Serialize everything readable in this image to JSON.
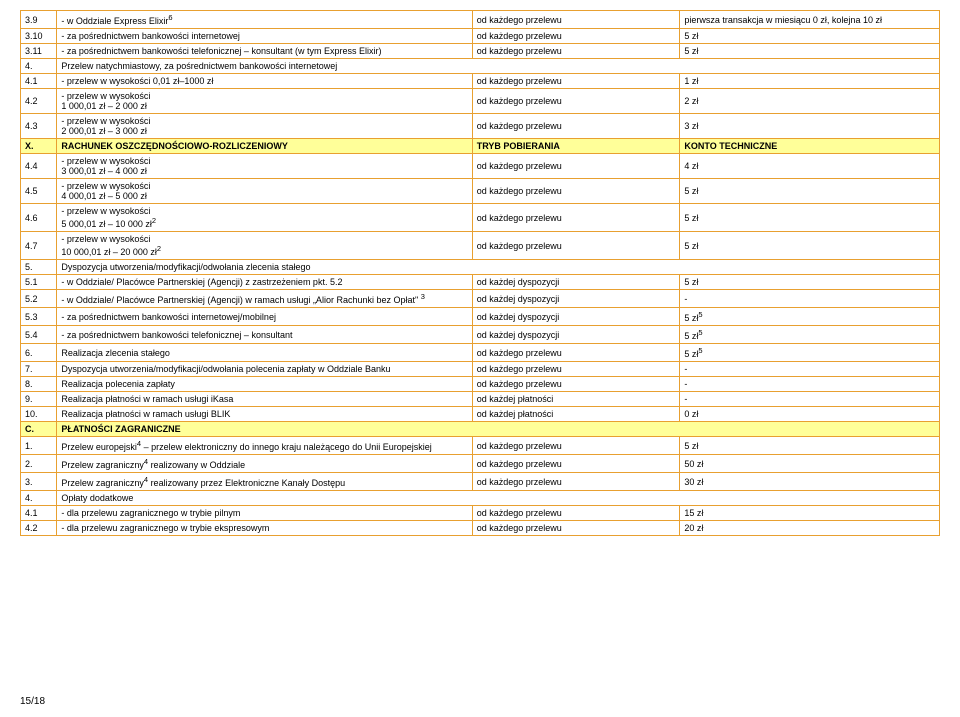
{
  "rows": [
    {
      "num": "3.9",
      "desc": "- w Oddziale Express Elixir<sup>6</sup>",
      "tryb": "od każdego przelewu",
      "val": "pierwsza transakcja w miesiącu 0 zł, kolejna 10 zł"
    },
    {
      "num": "3.10",
      "desc": "- za pośrednictwem bankowości internetowej",
      "tryb": "od każdego przelewu",
      "val": "5 zł"
    },
    {
      "num": "3.11",
      "desc": "- za pośrednictwem bankowości telefonicznej – konsultant (w tym Express Elixir)",
      "tryb": "od każdego przelewu",
      "val": "5 zł"
    },
    {
      "num": "4.",
      "desc": "Przelew natychmiastowy, za pośrednictwem bankowości internetowej",
      "span": true
    },
    {
      "num": "4.1",
      "desc": "- przelew w wysokości 0,01 zł–1000 zł",
      "tryb": "od każdego przelewu",
      "val": "1 zł"
    },
    {
      "num": "4.2",
      "desc": "- przelew w wysokości\n1 000,01 zł – 2 000 zł",
      "tryb": "od każdego przelewu",
      "val": "2 zł"
    },
    {
      "num": "4.3",
      "desc": "- przelew w wysokości\n2 000,01 zł – 3 000 zł",
      "tryb": "od każdego przelewu",
      "val": "3 zł"
    },
    {
      "num": "X.",
      "desc": "RACHUNEK OSZCZĘDNOŚCIOWO-ROZLICZENIOWY",
      "tryb": "TRYB POBIERANIA",
      "val": "KONTO TECHNICZNE",
      "yellow": true
    },
    {
      "num": "4.4",
      "desc": "- przelew w wysokości\n3 000,01 zł – 4 000 zł",
      "tryb": "od każdego przelewu",
      "val": "4 zł"
    },
    {
      "num": "4.5",
      "desc": "- przelew w wysokości\n4 000,01 zł – 5 000 zł",
      "tryb": "od każdego przelewu",
      "val": "5 zł"
    },
    {
      "num": "4.6",
      "desc": "- przelew w wysokości\n5 000,01 zł – 10 000 zł<sup>2</sup>",
      "tryb": "od każdego przelewu",
      "val": "5 zł"
    },
    {
      "num": "4.7",
      "desc": "- przelew w wysokości\n10 000,01 zł – 20 000 zł<sup>2</sup>",
      "tryb": "od każdego przelewu",
      "val": "5 zł"
    },
    {
      "num": "5.",
      "desc": "Dyspozycja utworzenia/modyfikacji/odwołania zlecenia stałego",
      "span": true
    },
    {
      "num": "5.1",
      "desc": "- w Oddziale/ Placówce Partnerskiej (Agencji) z zastrzeżeniem pkt. 5.2",
      "tryb": "od każdej dyspozycji",
      "val": "5 zł"
    },
    {
      "num": "5.2",
      "desc": "- w Oddziale/ Placówce Partnerskiej (Agencji) w ramach usługi „Alior Rachunki bez Opłat\" <sup>3</sup>",
      "tryb": "od każdej dyspozycji",
      "val": "-"
    },
    {
      "num": "5.3",
      "desc": "- za pośrednictwem bankowości internetowej/mobilnej",
      "tryb": "od każdej dyspozycji",
      "val": "5 zł<sup>5</sup>"
    },
    {
      "num": "5.4",
      "desc": "- za pośrednictwem bankowości telefonicznej – konsultant",
      "tryb": "od każdej dyspozycji",
      "val": "5 zł<sup>5</sup>"
    },
    {
      "num": "6.",
      "desc": "Realizacja zlecenia stałego",
      "tryb": "od każdego przelewu",
      "val": "5 zł<sup>5</sup>"
    },
    {
      "num": "7.",
      "desc": "Dyspozycja utworzenia/modyfikacji/odwołania polecenia zapłaty w Oddziale Banku",
      "tryb": "od każdego przelewu",
      "val": "-"
    },
    {
      "num": "8.",
      "desc": "Realizacja polecenia zapłaty",
      "tryb": "od każdego przelewu",
      "val": "-"
    },
    {
      "num": "9.",
      "desc": "Realizacja płatności w ramach usługi iKasa",
      "tryb": "od każdej płatności",
      "val": "-"
    },
    {
      "num": "10.",
      "desc": "Realizacja płatności w ramach usługi BLIK",
      "tryb": "od każdej płatności",
      "val": "0 zł"
    },
    {
      "num": "C.",
      "desc": "PŁATNOŚCI ZAGRANICZNE",
      "span": true,
      "yellow": true
    },
    {
      "num": "1.",
      "desc": "Przelew europejski<sup>4</sup> – przelew elektroniczny do innego kraju należącego do Unii Europejskiej",
      "tryb": "od każdego przelewu",
      "val": "5 zł"
    },
    {
      "num": "2.",
      "desc": "Przelew zagraniczny<sup>4</sup> realizowany w Oddziale",
      "tryb": "od każdego przelewu",
      "val": "50 zł"
    },
    {
      "num": "3.",
      "desc": "Przelew zagraniczny<sup>4</sup> realizowany przez Elektroniczne Kanały Dostępu",
      "tryb": "od każdego przelewu",
      "val": "30 zł"
    },
    {
      "num": "4.",
      "desc": "Opłaty dodatkowe",
      "span": true
    },
    {
      "num": "4.1",
      "desc": "- dla przelewu zagranicznego w trybie pilnym",
      "tryb": "od każdego przelewu",
      "val": "15 zł"
    },
    {
      "num": "4.2",
      "desc": "- dla przelewu zagranicznego w trybie ekspresowym",
      "tryb": "od każdego przelewu",
      "val": "20 zł"
    }
  ],
  "footer": "15/18"
}
